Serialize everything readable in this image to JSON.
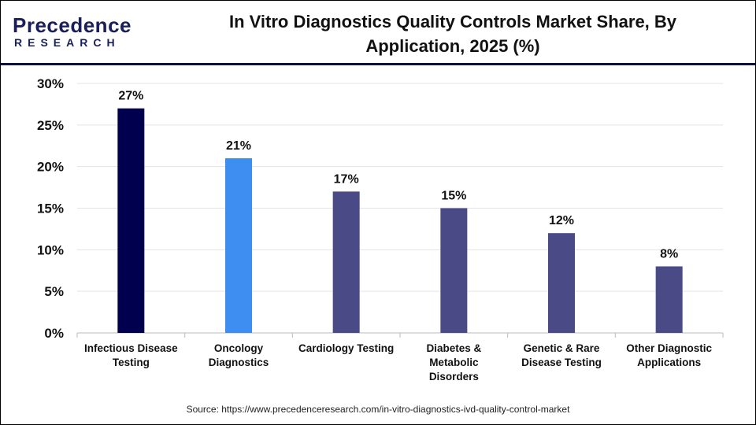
{
  "logo": {
    "text_top": "Precedence",
    "text_bottom": "RESEARCH"
  },
  "title": "In Vitro Diagnostics Quality Controls Market Share, By Application, 2025 (%)",
  "source": "Source: https://www.precedenceresearch.com/in-vitro-diagnostics-ivd-quality-control-market",
  "chart_data": {
    "type": "bar",
    "title": "In Vitro Diagnostics Quality Controls Market Share, By Application, 2025 (%)",
    "categories": [
      [
        "Infectious Disease",
        "Testing"
      ],
      [
        "Oncology",
        "Diagnostics"
      ],
      [
        "Cardiology Testing"
      ],
      [
        "Diabetes &",
        "Metabolic",
        "Disorders"
      ],
      [
        "Genetic & Rare",
        "Disease Testing"
      ],
      [
        "Other Diagnostic",
        "Applications"
      ]
    ],
    "values": [
      27,
      21,
      17,
      15,
      12,
      8
    ],
    "data_labels": [
      "27%",
      "21%",
      "17%",
      "15%",
      "12%",
      "8%"
    ],
    "colors": [
      "#00004f",
      "#3d8ef0",
      "#4a4b86",
      "#4a4b86",
      "#4a4b86",
      "#4a4b86"
    ],
    "ylim": [
      0,
      30
    ],
    "yticks": [
      0,
      5,
      10,
      15,
      20,
      25,
      30
    ],
    "ytick_labels": [
      "0%",
      "5%",
      "10%",
      "15%",
      "20%",
      "25%",
      "30%"
    ],
    "xlabel": "",
    "ylabel": "",
    "grid": true,
    "legend": "none"
  }
}
